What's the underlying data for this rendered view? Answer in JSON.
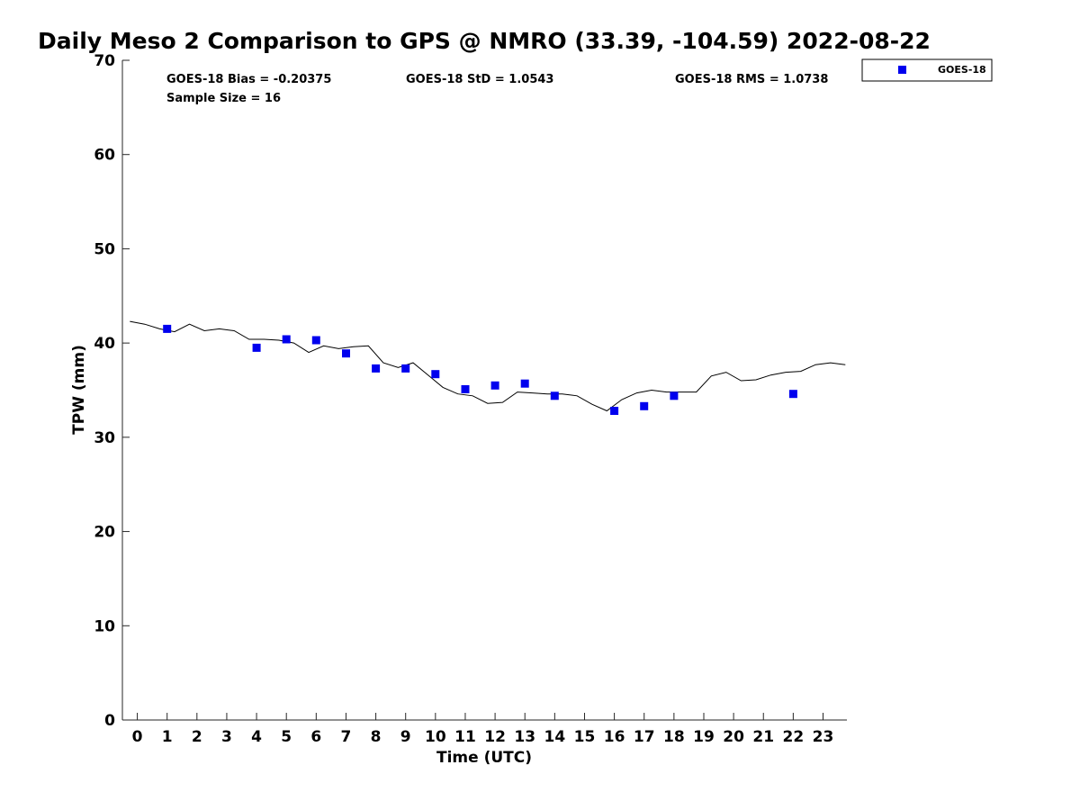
{
  "chart_data": {
    "type": "scatter",
    "title": "Daily Meso 2 Comparison to GPS @ NMRO (33.39, -104.59) 2022-08-22",
    "xlabel": "Time (UTC)",
    "ylabel": "TPW (mm)",
    "xlim": [
      -0.5,
      23.8
    ],
    "ylim": [
      0,
      70
    ],
    "x_ticks": [
      0,
      1,
      2,
      3,
      4,
      5,
      6,
      7,
      8,
      9,
      10,
      11,
      12,
      13,
      14,
      15,
      16,
      17,
      18,
      19,
      20,
      21,
      22,
      23
    ],
    "y_ticks": [
      0,
      10,
      20,
      30,
      40,
      50,
      60,
      70
    ],
    "grid": false,
    "legend_position": "top-right, outside plot",
    "stats": {
      "bias": "GOES-18 Bias = -0.20375",
      "std": "GOES-18 StD = 1.0543",
      "rms": "GOES-18 RMS = 1.0738",
      "sample": "Sample Size = 16"
    },
    "series": [
      {
        "name": "GOES-18",
        "style": "markers",
        "marker": "square",
        "color": "#0000ee",
        "x": [
          1,
          4,
          5,
          6,
          7,
          8,
          9,
          10,
          11,
          12,
          13,
          14,
          16,
          17,
          18,
          22
        ],
        "y": [
          41.5,
          39.5,
          40.4,
          40.3,
          38.9,
          37.3,
          37.3,
          36.7,
          35.1,
          35.5,
          35.7,
          34.4,
          32.8,
          33.3,
          34.4,
          34.6
        ]
      },
      {
        "style": "line",
        "color": "#000000",
        "x": [
          -0.25,
          0.25,
          0.75,
          1.25,
          1.75,
          2.25,
          2.75,
          3.25,
          3.75,
          4.25,
          4.75,
          5.25,
          5.75,
          6.25,
          6.75,
          7.25,
          7.75,
          8.25,
          8.75,
          9.25,
          9.75,
          10.25,
          10.75,
          11.25,
          11.75,
          12.25,
          12.75,
          13.25,
          13.75,
          14.25,
          14.75,
          15.25,
          15.75,
          16.25,
          16.75,
          17.25,
          17.75,
          18.25,
          18.75,
          19.25,
          19.75,
          20.25,
          20.75,
          21.25,
          21.75,
          22.25,
          22.75,
          23.25,
          23.75
        ],
        "y": [
          42.3,
          42.0,
          41.5,
          41.2,
          42.0,
          41.3,
          41.5,
          41.3,
          40.4,
          40.4,
          40.3,
          40.0,
          39.0,
          39.7,
          39.4,
          39.6,
          39.7,
          37.9,
          37.4,
          37.9,
          36.6,
          35.3,
          34.6,
          34.4,
          33.6,
          33.7,
          34.8,
          34.7,
          34.6,
          34.6,
          34.4,
          33.5,
          32.8,
          34.0,
          34.7,
          35.0,
          34.8,
          34.8,
          34.8,
          36.5,
          36.9,
          36.0,
          36.1,
          36.6,
          36.9,
          37.0,
          37.7,
          37.9,
          37.7
        ]
      }
    ]
  }
}
